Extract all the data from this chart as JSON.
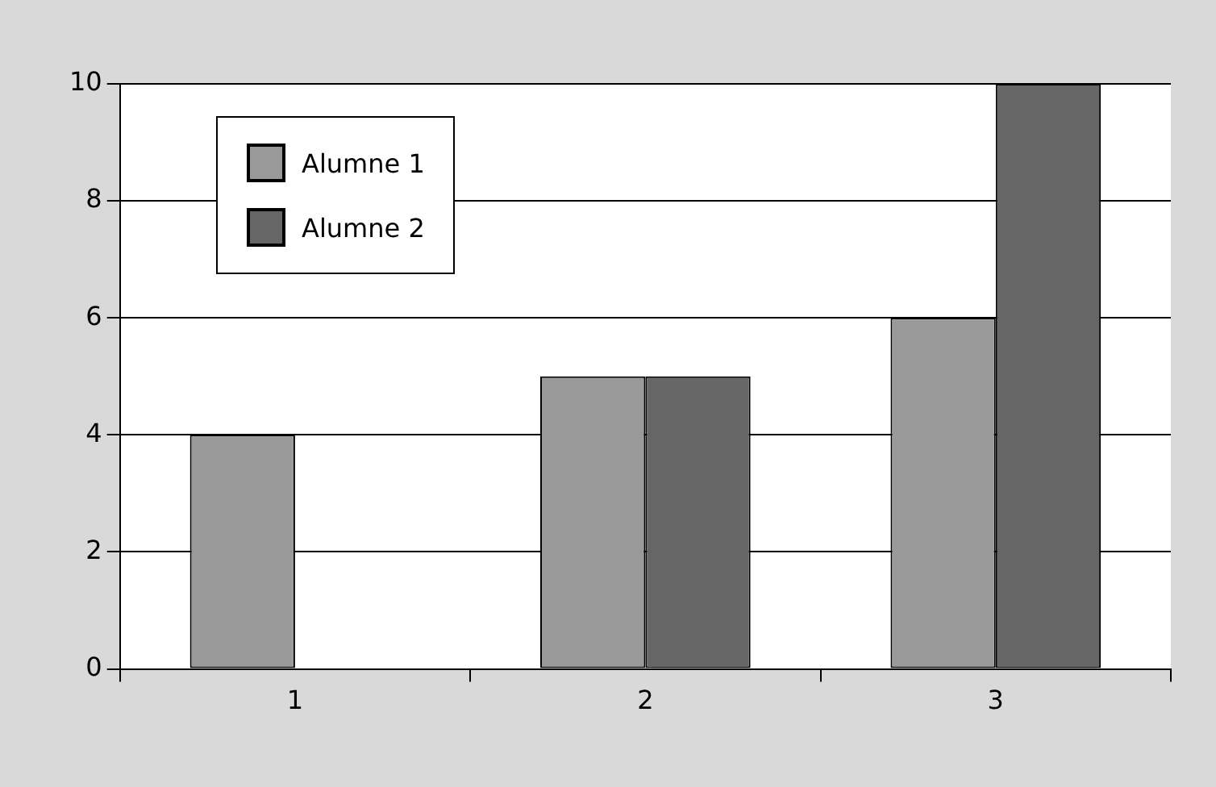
{
  "chart_data": {
    "type": "bar",
    "categories": [
      "1",
      "2",
      "3"
    ],
    "series": [
      {
        "name": "Alumne 1",
        "color": "#999999",
        "values": [
          4,
          5,
          6
        ]
      },
      {
        "name": "Alumne 2",
        "color": "#666666",
        "values": [
          0,
          5,
          10
        ]
      }
    ],
    "ylim": [
      0,
      10
    ],
    "yticks": [
      0,
      2,
      4,
      6,
      8,
      10
    ],
    "grid": "y",
    "legend": "top left"
  }
}
